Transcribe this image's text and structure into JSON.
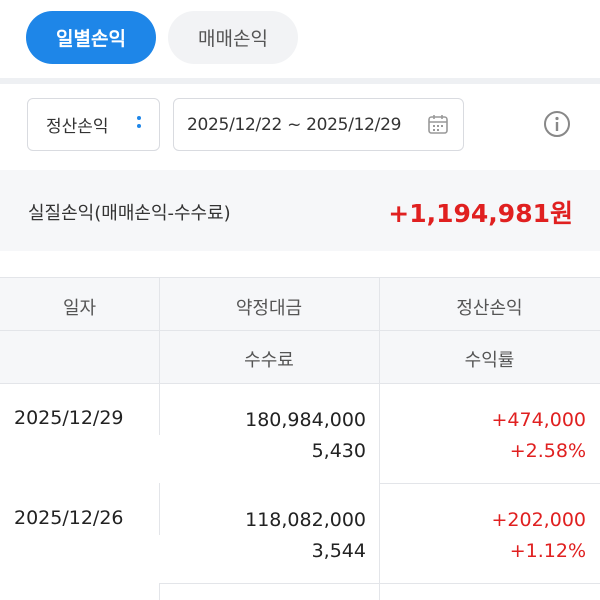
{
  "tabs": [
    {
      "label": "일별손익",
      "active": true
    },
    {
      "label": "매매손익",
      "active": false
    }
  ],
  "filter": {
    "select_value": "정산손익",
    "date_range": "2025/12/22 ~ 2025/12/29"
  },
  "summary": {
    "label": "실질손익(매매손익-수수료)",
    "value": "+1,194,981원"
  },
  "table": {
    "headers_row1": [
      "일자",
      "약정대금",
      "정산손익"
    ],
    "headers_row2": [
      "",
      "수수료",
      "수익률"
    ],
    "rows": [
      {
        "date": "2025/12/29",
        "amount": "180,984,000",
        "fee": "5,430",
        "pnl": "+474,000",
        "rate": "+2.58%"
      },
      {
        "date": "2025/12/26",
        "amount": "118,082,000",
        "fee": "3,544",
        "pnl": "+202,000",
        "rate": "+1.12%"
      }
    ]
  },
  "colors": {
    "accent": "#1e86e8",
    "profit": "#e02020"
  }
}
